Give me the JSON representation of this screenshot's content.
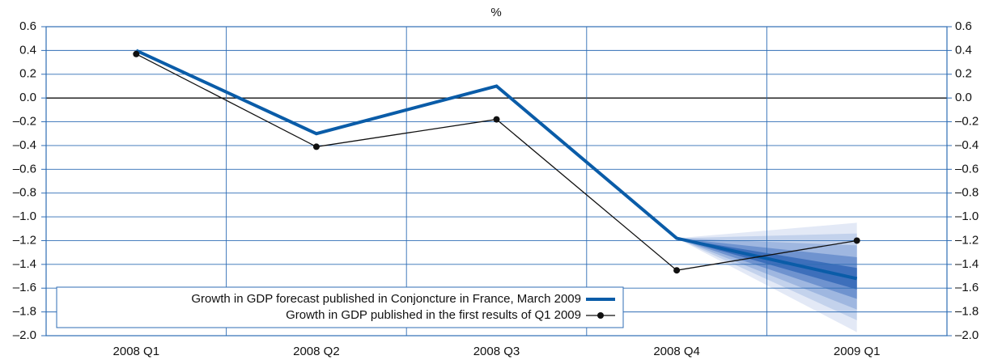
{
  "chart_data": {
    "type": "line",
    "unit_label": "%",
    "categories": [
      "2008 Q1",
      "2008 Q2",
      "2008 Q3",
      "2008 Q4",
      "2009 Q1"
    ],
    "series": [
      {
        "name": "Growth in GDP forecast published in Conjoncture in France, March 2009",
        "color": "#0a5ca8",
        "values": [
          0.4,
          -0.3,
          0.1,
          -1.18,
          -1.52
        ]
      },
      {
        "name": "Growth in GDP published in the first results of Q1 2009",
        "color": "#111111",
        "values": [
          0.37,
          -0.41,
          -0.18,
          -1.45,
          -1.2
        ]
      }
    ],
    "fan_bands": [
      {
        "low": -1.97,
        "high": -1.05,
        "color": "#e3e9f6"
      },
      {
        "low": -1.87,
        "high": -1.14,
        "color": "#c3d2ec"
      },
      {
        "low": -1.78,
        "high": -1.24,
        "color": "#9fb7e0"
      },
      {
        "low": -1.69,
        "high": -1.34,
        "color": "#6f93cf"
      },
      {
        "low": -1.61,
        "high": -1.43,
        "color": "#3d6fbb"
      }
    ],
    "ylim": [
      -2.0,
      0.6
    ],
    "yticks": [
      {
        "value": 0.6,
        "label": "0.6"
      },
      {
        "value": 0.4,
        "label": "0.4"
      },
      {
        "value": 0.2,
        "label": "0.2"
      },
      {
        "value": 0,
        "label": "0.0"
      },
      {
        "value": -0.2,
        "label": "–0.2"
      },
      {
        "value": -0.4,
        "label": "–0.4"
      },
      {
        "value": -0.6,
        "label": "–0.6"
      },
      {
        "value": -0.8,
        "label": "–0.8"
      },
      {
        "value": -1.0,
        "label": "–1.0"
      },
      {
        "value": -1.2,
        "label": "–1.2"
      },
      {
        "value": -1.4,
        "label": "–1.4"
      },
      {
        "value": -1.6,
        "label": "–1.6"
      },
      {
        "value": -1.8,
        "label": "–1.8"
      },
      {
        "value": -2.0,
        "label": "–2.0"
      }
    ],
    "grid": true,
    "grid_color": "#2f6db5",
    "legend": "lower left"
  }
}
